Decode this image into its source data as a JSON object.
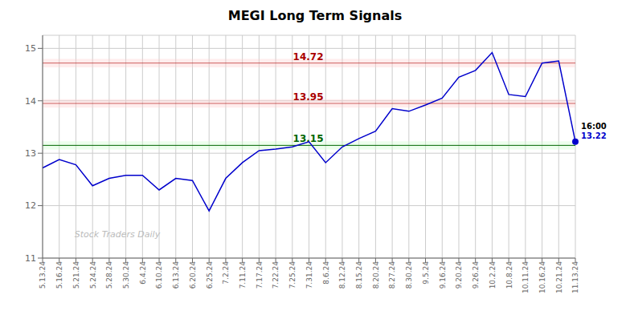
{
  "chart_data": {
    "type": "line",
    "title": "MEGI Long Term Signals",
    "categories": [
      "5.13.24",
      "5.16.24",
      "5.21.24",
      "5.24.24",
      "5.28.24",
      "5.30.24",
      "6.4.24",
      "6.10.24",
      "6.13.24",
      "6.20.24",
      "6.25.24",
      "7.2.24",
      "7.11.24",
      "7.17.24",
      "7.22.24",
      "7.25.24",
      "7.31.24",
      "8.6.24",
      "8.12.24",
      "8.15.24",
      "8.20.24",
      "8.27.24",
      "8.30.24",
      "9.5.24",
      "9.16.24",
      "9.20.24",
      "9.26.24",
      "10.2.24",
      "10.8.24",
      "10.11.24",
      "10.16.24",
      "10.21.24",
      "11.13.24"
    ],
    "values": [
      12.72,
      12.88,
      12.78,
      12.38,
      12.52,
      12.58,
      12.58,
      12.3,
      12.52,
      12.48,
      11.9,
      12.52,
      12.82,
      13.05,
      13.08,
      13.12,
      13.22,
      12.82,
      13.12,
      13.28,
      13.42,
      13.85,
      13.8,
      13.92,
      14.05,
      14.45,
      14.58,
      14.92,
      14.12,
      14.08,
      14.72,
      14.76,
      13.22
    ],
    "color": "#0000cc",
    "ylim": [
      11,
      15.25
    ],
    "yticks": [
      11,
      12,
      13,
      14,
      15
    ],
    "grid": true,
    "reference_lines": [
      {
        "value": 14.72,
        "label": "14.72",
        "color": "#aa0000",
        "band": [
          14.64,
          14.8
        ],
        "band_color": "#ffcccc"
      },
      {
        "value": 13.95,
        "label": "13.95",
        "color": "#aa0000",
        "band": [
          13.87,
          14.03
        ],
        "band_color": "#ffcccc"
      },
      {
        "value": 13.15,
        "label": "13.15",
        "color": "#006600",
        "band": [
          13.07,
          13.23
        ],
        "band_color": "#ccffcc"
      }
    ],
    "last_point_labels": [
      {
        "text": "16:00",
        "color": "#000000"
      },
      {
        "text": "13.22",
        "color": "#0000cc"
      }
    ],
    "watermark": {
      "text": "Stock Traders Daily",
      "color": "#bbbbbb"
    }
  }
}
